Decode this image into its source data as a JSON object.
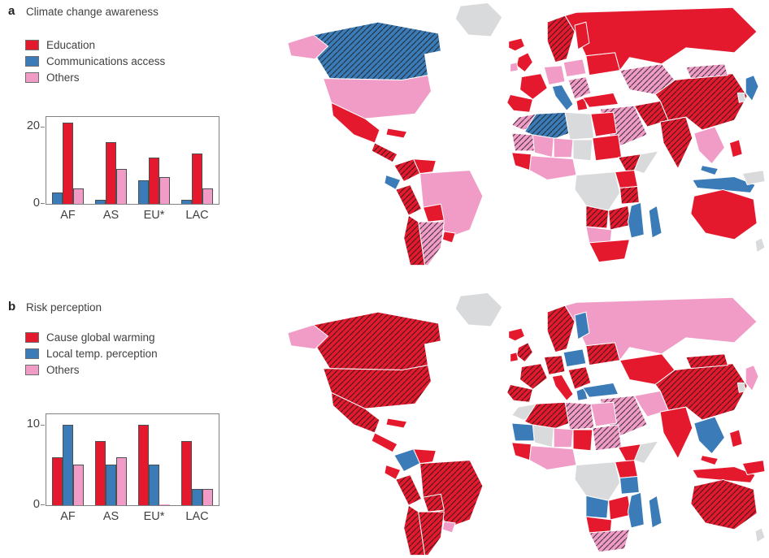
{
  "figure": {
    "panels": [
      {
        "id": "a",
        "label": "a",
        "title": "Climate change awareness",
        "legend": [
          {
            "label": "Education",
            "color": "#e5192e"
          },
          {
            "label": "Communications access",
            "color": "#3b7cb8"
          },
          {
            "label": "Others",
            "color": "#f09cc7"
          }
        ]
      },
      {
        "id": "b",
        "label": "b",
        "title": "Risk perception",
        "legend": [
          {
            "label": "Cause global warming",
            "color": "#e5192e"
          },
          {
            "label": "Local temp. perception",
            "color": "#3b7cb8"
          },
          {
            "label": "Others",
            "color": "#f09cc7"
          }
        ]
      }
    ]
  },
  "chart_data": [
    {
      "type": "bar",
      "panel": "a",
      "title": "Climate change awareness",
      "categories": [
        "AF",
        "AS",
        "EU*",
        "LAC"
      ],
      "series": [
        {
          "name": "Communications access",
          "color": "#3b7cb8",
          "values": [
            3,
            1,
            6,
            1
          ]
        },
        {
          "name": "Education",
          "color": "#e5192e",
          "values": [
            21,
            16,
            12,
            13
          ]
        },
        {
          "name": "Others",
          "color": "#f09cc7",
          "values": [
            4,
            9,
            7,
            4
          ]
        }
      ],
      "ylim": [
        0,
        22.5
      ],
      "yticks": [
        0,
        20
      ],
      "grid": false,
      "legend_position": "outside-upper-left"
    },
    {
      "type": "bar",
      "panel": "b",
      "title": "Risk perception",
      "categories": [
        "AF",
        "AS",
        "EU*",
        "LAC"
      ],
      "series": [
        {
          "name": "Cause global warming",
          "color": "#e5192e",
          "values": [
            6,
            8,
            10,
            8
          ]
        },
        {
          "name": "Local temp. perception",
          "color": "#3b7cb8",
          "values": [
            10,
            5,
            5,
            2
          ]
        },
        {
          "name": "Others",
          "color": "#f09cc7",
          "values": [
            5,
            6,
            0.1,
            2
          ]
        }
      ],
      "ylim": [
        0,
        11.3
      ],
      "yticks": [
        0,
        10
      ],
      "grid": false,
      "legend_position": "outside-upper-left"
    }
  ],
  "maps": {
    "palette": {
      "red": "#e5192e",
      "blue": "#3b7cb8",
      "pink": "#f09cc7",
      "gray": "#d9dadb"
    },
    "a": {
      "regions": {
        "alaska": "pink",
        "canada": "blue-hatched",
        "greenland": "gray",
        "usa": "pink",
        "mexico": "red",
        "central_america": "red-hatched",
        "caribbean": "red",
        "colombia": "red-hatched",
        "venezuela": "red",
        "ecuador": "blue",
        "peru": "red-hatched",
        "brazil": "pink",
        "bolivia": "red",
        "chile": "red-hatched",
        "argentina": "pink-hatched",
        "uruguay": "red",
        "iceland": "red",
        "uk": "red",
        "ireland": "pink",
        "scandinavia": "red-hatched",
        "finland": "red",
        "france": "red",
        "iberia": "red",
        "central_europe": "pink",
        "italy": "blue",
        "poland_baltic": "pink",
        "balkans": "pink-hatched",
        "ukraine": "red",
        "turkey": "red",
        "greece": "red",
        "russia": "red",
        "central_asia": "pink-hatched",
        "middle_east": "pink-hatched",
        "iran": "red-hatched",
        "india": "red-hatched",
        "china": "red-hatched",
        "mongolia": "pink-hatched",
        "japan": "blue",
        "korea": "gray",
        "se_asia": "pink",
        "malaysia": "blue",
        "indonesia": "blue",
        "philippines": "red",
        "new_guinea": "gray",
        "morocco": "pink-hatched",
        "algeria": "blue-hatched",
        "libya": "gray",
        "egypt": "red",
        "mauritania": "pink-hatched",
        "mali": "pink",
        "niger": "pink",
        "chad": "gray",
        "sudan": "red",
        "senegal": "red",
        "nigeria": "pink",
        "ethiopia": "red-hatched",
        "somalia": "gray",
        "kenya": "red",
        "drc": "gray",
        "tanzania": "red-hatched",
        "angola": "red-hatched",
        "zambia": "red-hatched",
        "mozambique": "blue",
        "namibia": "pink",
        "south_africa": "red",
        "madagascar": "blue",
        "australia": "red",
        "new_zealand": "gray"
      }
    },
    "b": {
      "regions": {
        "alaska": "pink",
        "canada": "red-hatched",
        "greenland": "gray",
        "usa": "red-hatched",
        "mexico": "red-hatched",
        "central_america": "red",
        "caribbean": "red",
        "colombia": "blue",
        "venezuela": "red",
        "ecuador": "red",
        "peru": "red-hatched",
        "brazil": "red-hatched",
        "bolivia": "red-hatched",
        "chile": "red-hatched",
        "argentina": "red-hatched",
        "uruguay": "pink",
        "iceland": "red",
        "uk": "red-hatched",
        "ireland": "red",
        "scandinavia": "red-hatched",
        "finland": "blue",
        "france": "red-hatched",
        "iberia": "red-hatched",
        "central_europe": "red-hatched",
        "italy": "red",
        "poland_baltic": "blue",
        "balkans": "red-hatched",
        "ukraine": "red-hatched",
        "turkey": "blue",
        "greece": "blue",
        "russia": "pink",
        "central_asia": "red",
        "middle_east": "pink-hatched",
        "iran": "pink",
        "india": "red",
        "china": "red-hatched",
        "mongolia": "red-hatched",
        "japan": "pink",
        "korea": "gray",
        "se_asia": "blue",
        "malaysia": "red",
        "indonesia": "red",
        "philippines": "red",
        "new_guinea": "red",
        "morocco": "gray",
        "algeria": "red-hatched",
        "libya": "pink-hatched",
        "egypt": "pink",
        "mauritania": "blue",
        "mali": "gray",
        "niger": "pink",
        "chad": "red",
        "sudan": "pink-hatched",
        "senegal": "red",
        "nigeria": "pink",
        "ethiopia": "red",
        "somalia": "gray",
        "kenya": "red",
        "drc": "gray",
        "tanzania": "blue",
        "angola": "blue",
        "zambia": "red",
        "mozambique": "blue",
        "namibia": "red",
        "south_africa": "pink-hatched",
        "madagascar": "blue",
        "australia": "red-hatched",
        "new_zealand": "gray"
      }
    }
  }
}
